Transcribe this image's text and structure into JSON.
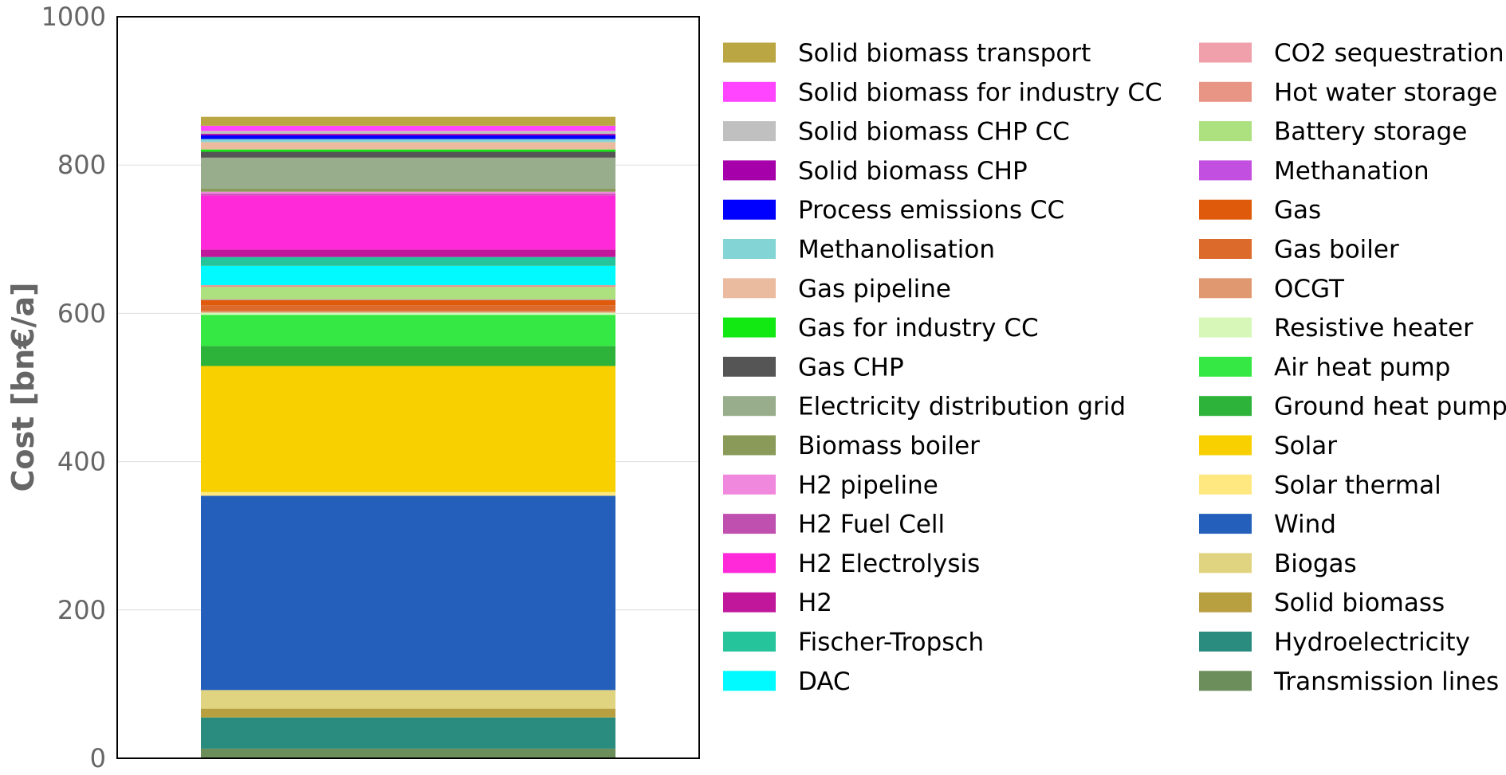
{
  "chart_data": {
    "type": "bar",
    "stacked": true,
    "categories": [
      ""
    ],
    "ylabel": "Cost [bn€/a]",
    "ylim": [
      0,
      1000
    ],
    "yticks": [
      0,
      200,
      400,
      600,
      800,
      1000
    ],
    "grid": "y",
    "legend_position": "right, two columns",
    "series": [
      {
        "name": "Transmission lines",
        "color": "#6B8E5A",
        "values": [
          13
        ]
      },
      {
        "name": "Hydroelectricity",
        "color": "#2A8C7E",
        "values": [
          42
        ]
      },
      {
        "name": "Solid biomass",
        "color": "#B8A040",
        "values": [
          12
        ]
      },
      {
        "name": "Biogas",
        "color": "#E0D480",
        "values": [
          25
        ]
      },
      {
        "name": "Wind",
        "color": "#2460BB",
        "values": [
          262
        ]
      },
      {
        "name": "Solar thermal",
        "color": "#FFE880",
        "values": [
          5
        ]
      },
      {
        "name": "Solar",
        "color": "#F8D000",
        "values": [
          170
        ]
      },
      {
        "name": "Ground heat pump",
        "color": "#2DB23A",
        "values": [
          27
        ]
      },
      {
        "name": "Air heat pump",
        "color": "#36E843",
        "values": [
          42
        ]
      },
      {
        "name": "Resistive heater",
        "color": "#D6F7B8",
        "values": [
          3
        ]
      },
      {
        "name": "OCGT",
        "color": "#E09870",
        "values": [
          2
        ]
      },
      {
        "name": "Gas boiler",
        "color": "#DC6A2A",
        "values": [
          8
        ]
      },
      {
        "name": "Gas",
        "color": "#E05A0B",
        "values": [
          7
        ]
      },
      {
        "name": "Methanation",
        "color": "#C34FE0",
        "values": [
          0.5
        ]
      },
      {
        "name": "Battery storage",
        "color": "#ADE07F",
        "values": [
          17
        ]
      },
      {
        "name": "Hot water storage",
        "color": "#E89585",
        "values": [
          2
        ]
      },
      {
        "name": "CO2 sequestration",
        "color": "#F0A0AA",
        "values": [
          0.5
        ]
      },
      {
        "name": "DAC",
        "color": "#00FAFF",
        "values": [
          26
        ]
      },
      {
        "name": "Fischer-Tropsch",
        "color": "#26C49B",
        "values": [
          12
        ]
      },
      {
        "name": "H2",
        "color": "#C0179B",
        "values": [
          10
        ]
      },
      {
        "name": "H2 Electrolysis",
        "color": "#FF29D9",
        "values": [
          73
        ]
      },
      {
        "name": "H2 Fuel Cell",
        "color": "#C050B0",
        "values": [
          2
        ]
      },
      {
        "name": "H2 pipeline",
        "color": "#F088DD",
        "values": [
          3
        ]
      },
      {
        "name": "Biomass boiler",
        "color": "#8A9B59",
        "values": [
          4
        ]
      },
      {
        "name": "Electricity distribution grid",
        "color": "#97AD8C",
        "values": [
          42
        ]
      },
      {
        "name": "Gas CHP",
        "color": "#555555",
        "values": [
          8
        ]
      },
      {
        "name": "Gas for industry CC",
        "color": "#12E812",
        "values": [
          3
        ]
      },
      {
        "name": "Gas pipeline",
        "color": "#EBBBA0",
        "values": [
          10
        ]
      },
      {
        "name": "Methanolisation",
        "color": "#83D5D5",
        "values": [
          4
        ]
      },
      {
        "name": "Process emissions CC",
        "color": "#0000FF",
        "values": [
          5
        ]
      },
      {
        "name": "Solid biomass CHP",
        "color": "#A600AA",
        "values": [
          2
        ]
      },
      {
        "name": "Solid biomass CHP CC",
        "color": "#C0C0C0",
        "values": [
          4
        ]
      },
      {
        "name": "Solid biomass for industry CC",
        "color": "#FF45FF",
        "values": [
          7
        ]
      },
      {
        "name": "Solid biomass transport",
        "color": "#BAA643",
        "values": [
          12
        ]
      }
    ]
  }
}
